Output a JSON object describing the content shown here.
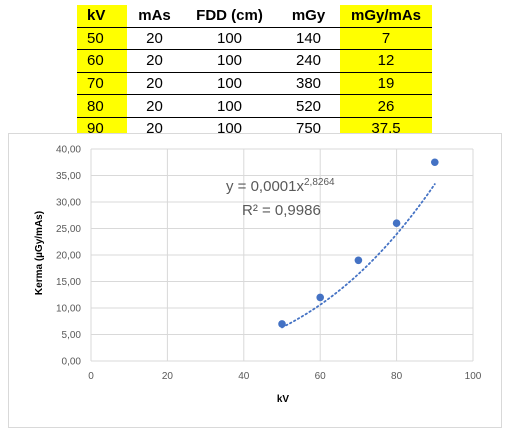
{
  "table": {
    "headers": [
      "kV",
      "mAs",
      "FDD (cm)",
      "mGy",
      "mGy/mAs"
    ],
    "rows": [
      [
        "50",
        "20",
        "100",
        "140",
        "7"
      ],
      [
        "60",
        "20",
        "100",
        "240",
        "12"
      ],
      [
        "70",
        "20",
        "100",
        "380",
        "19"
      ],
      [
        "80",
        "20",
        "100",
        "520",
        "26"
      ],
      [
        "90",
        "20",
        "100",
        "750",
        "37,5"
      ]
    ],
    "highlight_color": "#ffff00"
  },
  "chart_data": {
    "type": "scatter",
    "x": [
      50,
      60,
      70,
      80,
      90
    ],
    "y": [
      7,
      12,
      19,
      26,
      37.5
    ],
    "xlabel": "kV",
    "ylabel": "Kerma (µGy/mAs)",
    "xlim": [
      0,
      100
    ],
    "ylim": [
      0,
      40
    ],
    "xticks": [
      0,
      20,
      40,
      60,
      80,
      100
    ],
    "yticks": [
      0,
      5,
      10,
      15,
      20,
      25,
      30,
      35,
      40
    ],
    "ytick_labels": [
      "0,00",
      "5,00",
      "10,00",
      "15,00",
      "20,00",
      "25,00",
      "30,00",
      "35,00",
      "40,00"
    ],
    "grid": true,
    "marker_color": "#4472c4",
    "trendline": {
      "type": "power",
      "style": "dotted",
      "coefficient": 0.0001,
      "exponent": 2.8264,
      "equation_prefix": "y = 0,0001x",
      "equation_exponent": "2,8264",
      "r_squared_label": "R² = 0,9986"
    }
  }
}
